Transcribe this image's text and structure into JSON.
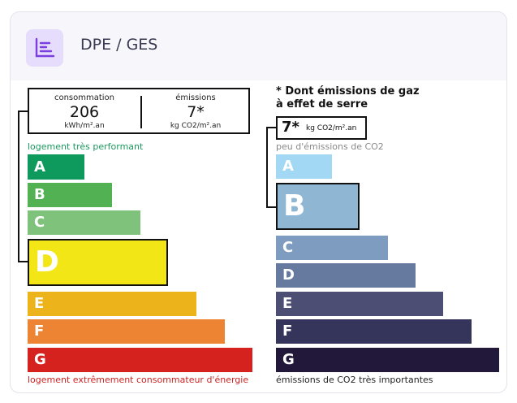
{
  "header": {
    "title": "DPE / GES",
    "icon": "chart-list-icon"
  },
  "dpe": {
    "consumption_label": "consommation",
    "consumption_value": "206",
    "consumption_unit": "kWh/m².an",
    "emissions_label": "émissions",
    "emissions_value": "7*",
    "emissions_unit": "kg CO2/m².an",
    "top_label": "logement très performant",
    "bottom_label": "logement extrêmement consommateur d'énergie",
    "current_class": "D",
    "classes": [
      {
        "letter": "A",
        "color": "#0d9a5c"
      },
      {
        "letter": "B",
        "color": "#52b153"
      },
      {
        "letter": "C",
        "color": "#7fc27c"
      },
      {
        "letter": "D",
        "color": "#f3e617"
      },
      {
        "letter": "E",
        "color": "#ecb41a"
      },
      {
        "letter": "F",
        "color": "#ec8434"
      },
      {
        "letter": "G",
        "color": "#d5221f"
      }
    ]
  },
  "ges": {
    "note_line1": "* Dont émissions de gaz",
    "note_line2": "à effet de serre",
    "value": "7*",
    "unit": "kg CO2/m².an",
    "top_label": "peu d'émissions de CO2",
    "bottom_label": "émissions de CO2 très importantes",
    "current_class": "B",
    "classes": [
      {
        "letter": "A",
        "color": "#a3d8f4"
      },
      {
        "letter": "B",
        "color": "#8fb7d3"
      },
      {
        "letter": "C",
        "color": "#7e9bc0"
      },
      {
        "letter": "D",
        "color": "#667aa0"
      },
      {
        "letter": "E",
        "color": "#4c4e74"
      },
      {
        "letter": "F",
        "color": "#35345a"
      },
      {
        "letter": "G",
        "color": "#22183a"
      }
    ]
  }
}
